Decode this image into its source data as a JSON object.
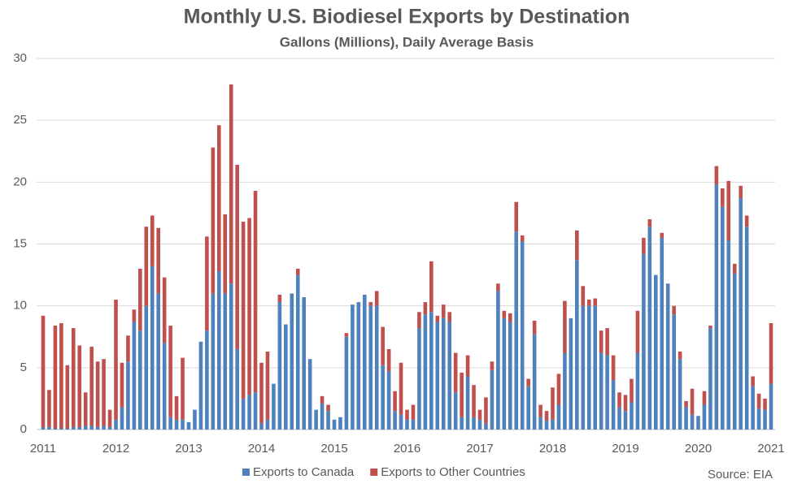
{
  "chart_data": {
    "type": "stacked_bar",
    "title": "Monthly U.S. Biodiesel Exports by Destination",
    "subtitle": "Gallons (Millions), Daily Average Basis",
    "source": "Source: EIA",
    "categories": [
      "2011",
      null,
      null,
      null,
      null,
      null,
      null,
      null,
      null,
      null,
      null,
      null,
      "2012",
      null,
      null,
      null,
      null,
      null,
      null,
      null,
      null,
      null,
      null,
      null,
      "2013",
      null,
      null,
      null,
      null,
      null,
      null,
      null,
      null,
      null,
      null,
      null,
      "2014",
      null,
      null,
      null,
      null,
      null,
      null,
      null,
      null,
      null,
      null,
      null,
      "2015",
      null,
      null,
      null,
      null,
      null,
      null,
      null,
      null,
      null,
      null,
      null,
      "2016",
      null,
      null,
      null,
      null,
      null,
      null,
      null,
      null,
      null,
      null,
      null,
      "2017",
      null,
      null,
      null,
      null,
      null,
      null,
      null,
      null,
      null,
      null,
      null,
      "2018",
      null,
      null,
      null,
      null,
      null,
      null,
      null,
      null,
      null,
      null,
      null,
      "2019",
      null,
      null,
      null,
      null,
      null,
      null,
      null,
      null,
      null,
      null,
      null,
      "2020",
      null,
      null,
      null,
      null,
      null,
      null,
      null,
      null,
      null,
      null,
      null,
      "2021"
    ],
    "series": [
      {
        "name": "Exports to Canada",
        "color": "#4f81bd",
        "values": [
          0.2,
          0.2,
          0.1,
          0.1,
          0.1,
          0.2,
          0.2,
          0.3,
          0.3,
          0.2,
          0.3,
          0.2,
          0.8,
          1.8,
          5.5,
          8.7,
          8.0,
          10.0,
          13.2,
          11.0,
          7.0,
          1.0,
          0.8,
          0.8,
          0.6,
          1.6,
          7.1,
          8.0,
          11.0,
          12.8,
          11.0,
          11.8,
          6.5,
          2.5,
          2.8,
          3.0,
          0.5,
          0.8,
          3.7,
          10.3,
          8.5,
          11.0,
          12.5,
          10.7,
          5.7,
          1.6,
          2.1,
          1.5,
          0.8,
          1.0,
          7.5,
          10.1,
          10.3,
          10.9,
          10.0,
          10.0,
          5.2,
          4.7,
          1.5,
          1.2,
          0.8,
          0.8,
          8.2,
          9.3,
          9.5,
          8.7,
          9.0,
          8.7,
          3.0,
          1.0,
          4.3,
          1.0,
          0.8,
          0.5,
          4.8,
          11.2,
          9.0,
          8.7,
          16.0,
          15.2,
          3.5,
          7.7,
          1.0,
          0.7,
          0.8,
          2.0,
          6.2,
          9.0,
          13.7,
          10.0,
          10.0,
          10.0,
          6.2,
          6.0,
          4.0,
          1.8,
          1.5,
          2.2,
          6.2,
          14.2,
          16.4,
          12.5,
          15.5,
          11.8,
          9.3,
          5.7,
          1.8,
          1.2,
          1.1,
          2.0,
          8.2,
          19.8,
          18.0,
          15.3,
          12.6,
          18.7,
          16.4,
          3.5,
          1.7,
          1.6,
          3.7
        ]
      },
      {
        "name": "Exports to Other Countries",
        "color": "#c0504d",
        "values": [
          9.0,
          3.0,
          8.3,
          8.5,
          5.1,
          8.0,
          6.6,
          2.7,
          6.4,
          5.3,
          5.4,
          1.4,
          9.7,
          3.6,
          2.1,
          1.0,
          5.0,
          6.4,
          4.1,
          5.3,
          5.3,
          7.4,
          1.9,
          5.0,
          0,
          0,
          0,
          7.6,
          11.8,
          11.8,
          6.4,
          16.1,
          14.9,
          14.3,
          14.3,
          16.3,
          4.9,
          5.5,
          0,
          0.6,
          0,
          0,
          0.5,
          0,
          0,
          0,
          0.6,
          0.5,
          0,
          0,
          0.3,
          0,
          0,
          0,
          0.3,
          1.2,
          3.1,
          1.8,
          1.6,
          4.2,
          0.8,
          1.2,
          1.3,
          1.0,
          4.1,
          0.5,
          1.1,
          0.8,
          3.2,
          3.6,
          1.7,
          2.6,
          0.8,
          2.1,
          0.7,
          0.6,
          0.6,
          0.7,
          2.4,
          0.5,
          0.6,
          1.1,
          1.0,
          0.8,
          2.6,
          2.5,
          4.2,
          0,
          2.4,
          1.6,
          0.5,
          0.6,
          1.8,
          2.2,
          2.0,
          1.2,
          1.3,
          1.9,
          3.4,
          1.3,
          0.6,
          0,
          0.4,
          0,
          0.7,
          0.6,
          0.5,
          2.1,
          0,
          1.1,
          0.2,
          1.5,
          1.5,
          4.8,
          0.8,
          1.0,
          0.9,
          0.8,
          1.2,
          0.9,
          4.9
        ]
      }
    ],
    "ylim": [
      0,
      30
    ],
    "yticks": [
      0,
      5,
      10,
      15,
      20,
      25,
      30
    ],
    "grid": true,
    "legend": "bottom"
  }
}
